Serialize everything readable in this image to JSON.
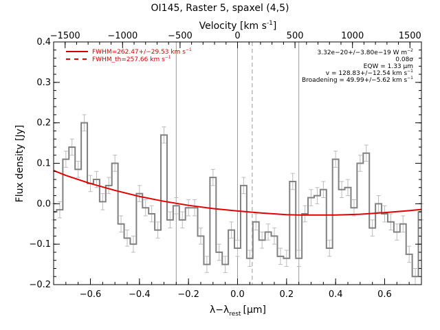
{
  "chart_data": {
    "type": "line",
    "title": "OI145, Raster 5, spaxel (4,5)",
    "xlabel": "λ−λ",
    "xlabel_sub": "rest",
    "xlabel_unit": "[μm]",
    "ylabel": "Flux density [Jy]",
    "top_axis_label": "Velocity [km s",
    "top_axis_label_sup": "-1",
    "top_axis_label_end": "]",
    "xlim": [
      -0.75,
      0.75
    ],
    "ylim": [
      -0.2,
      0.4
    ],
    "top_xlim": [
      -1600,
      1600
    ],
    "x_ticks": [
      -0.6,
      -0.4,
      -0.2,
      0.0,
      0.2,
      0.4,
      0.6
    ],
    "x_tick_labels": [
      "−0.6",
      "−0.4",
      "−0.2",
      "0.0",
      "0.2",
      "0.4",
      "0.6"
    ],
    "y_ticks": [
      -0.2,
      -0.1,
      0.0,
      0.1,
      0.2,
      0.3,
      0.4
    ],
    "y_tick_labels": [
      "−0.2",
      "−0.1",
      "0.0",
      "0.1",
      "0.2",
      "0.3",
      "0.4"
    ],
    "top_ticks": [
      -1500,
      -1000,
      -500,
      0,
      500,
      1000,
      1500
    ],
    "top_tick_labels": [
      "−1500",
      "−1000",
      "−500",
      "0",
      "500",
      "1000",
      "1500"
    ],
    "vertical_lines": [
      {
        "x": -0.25,
        "style": "solid",
        "color": "#999999"
      },
      {
        "x": 0.0,
        "style": "solid",
        "color": "#999999"
      },
      {
        "x": 0.06,
        "style": "dashed",
        "color": "#999999"
      },
      {
        "x": 0.25,
        "style": "solid",
        "color": "#999999"
      }
    ],
    "legend": {
      "placement": "top-left",
      "entries": [
        {
          "text": "FWHM=262.47+/−29.53 km s",
          "sup": "−1",
          "style": "solid",
          "color": "#d40000"
        },
        {
          "text": "FWHM_th=257.66 km s",
          "sup": "−1",
          "style": "dashed",
          "color": "#d40000"
        }
      ]
    },
    "annotations": [
      {
        "text": "3.32e−20+/−3.80e−19 W m",
        "sup": "−2"
      },
      {
        "text": "0.08σ",
        "sup": ""
      },
      {
        "text": "EQW = 1.33 μm",
        "sup": ""
      },
      {
        "text": "v = 128.83+/−12.54 km s",
        "sup": "−1"
      },
      {
        "text": "Broadening = 49.99+/−5.62 km s",
        "sup": "−1"
      }
    ],
    "series": [
      {
        "style": "step",
        "color": "#808080",
        "errorbar_color": "#bbbbbb",
        "x": [
          -0.75,
          -0.725,
          -0.7,
          -0.675,
          -0.65,
          -0.625,
          -0.6,
          -0.575,
          -0.55,
          -0.525,
          -0.5,
          -0.475,
          -0.45,
          -0.425,
          -0.4,
          -0.375,
          -0.35,
          -0.325,
          -0.3,
          -0.275,
          -0.25,
          -0.225,
          -0.2,
          -0.175,
          -0.15,
          -0.125,
          -0.1,
          -0.075,
          -0.05,
          -0.025,
          0.0,
          0.025,
          0.05,
          0.075,
          0.1,
          0.125,
          0.15,
          0.175,
          0.2,
          0.225,
          0.25,
          0.275,
          0.3,
          0.325,
          0.35,
          0.375,
          0.4,
          0.425,
          0.45,
          0.475,
          0.5,
          0.525,
          0.55,
          0.575,
          0.6,
          0.625,
          0.65,
          0.675,
          0.7,
          0.725,
          0.75
        ],
        "y": [
          -0.02,
          -0.015,
          0.11,
          0.14,
          0.085,
          0.2,
          0.05,
          0.06,
          0.005,
          0.045,
          0.1,
          -0.05,
          -0.085,
          -0.1,
          0.025,
          -0.01,
          -0.025,
          -0.065,
          0.17,
          -0.04,
          -0.005,
          -0.04,
          -0.01,
          -0.01,
          -0.08,
          -0.15,
          0.065,
          -0.12,
          -0.15,
          -0.065,
          -0.11,
          0.045,
          -0.135,
          -0.045,
          -0.09,
          -0.07,
          -0.08,
          -0.13,
          -0.135,
          0.055,
          -0.135,
          -0.025,
          0.015,
          0.02,
          0.035,
          -0.11,
          0.11,
          0.035,
          0.04,
          -0.01,
          0.1,
          0.125,
          -0.06,
          0.0,
          -0.025,
          -0.045,
          -0.07,
          -0.05,
          -0.125,
          -0.18,
          -0.02
        ],
        "yerr": [
          0.02,
          0.02,
          0.02,
          0.02,
          0.02,
          0.02,
          0.02,
          0.02,
          0.02,
          0.02,
          0.02,
          0.02,
          0.02,
          0.02,
          0.02,
          0.02,
          0.02,
          0.02,
          0.02,
          0.02,
          0.02,
          0.02,
          0.02,
          0.02,
          0.02,
          0.02,
          0.02,
          0.02,
          0.02,
          0.02,
          0.02,
          0.02,
          0.02,
          0.02,
          0.02,
          0.02,
          0.02,
          0.02,
          0.02,
          0.02,
          0.02,
          0.02,
          0.02,
          0.02,
          0.02,
          0.02,
          0.02,
          0.02,
          0.02,
          0.02,
          0.02,
          0.02,
          0.02,
          0.02,
          0.02,
          0.02,
          0.02,
          0.02,
          0.02,
          0.02,
          0.02
        ]
      },
      {
        "style": "line",
        "color": "#e00000",
        "x": [
          -0.75,
          -0.7,
          -0.6,
          -0.5,
          -0.4,
          -0.3,
          -0.2,
          -0.1,
          0.0,
          0.1,
          0.2,
          0.25,
          0.3,
          0.4,
          0.5,
          0.6,
          0.7,
          0.75
        ],
        "y": [
          0.082,
          0.07,
          0.05,
          0.033,
          0.018,
          0.006,
          -0.004,
          -0.012,
          -0.018,
          -0.023,
          -0.027,
          -0.028,
          -0.028,
          -0.028,
          -0.026,
          -0.022,
          -0.017,
          -0.014
        ]
      }
    ]
  }
}
